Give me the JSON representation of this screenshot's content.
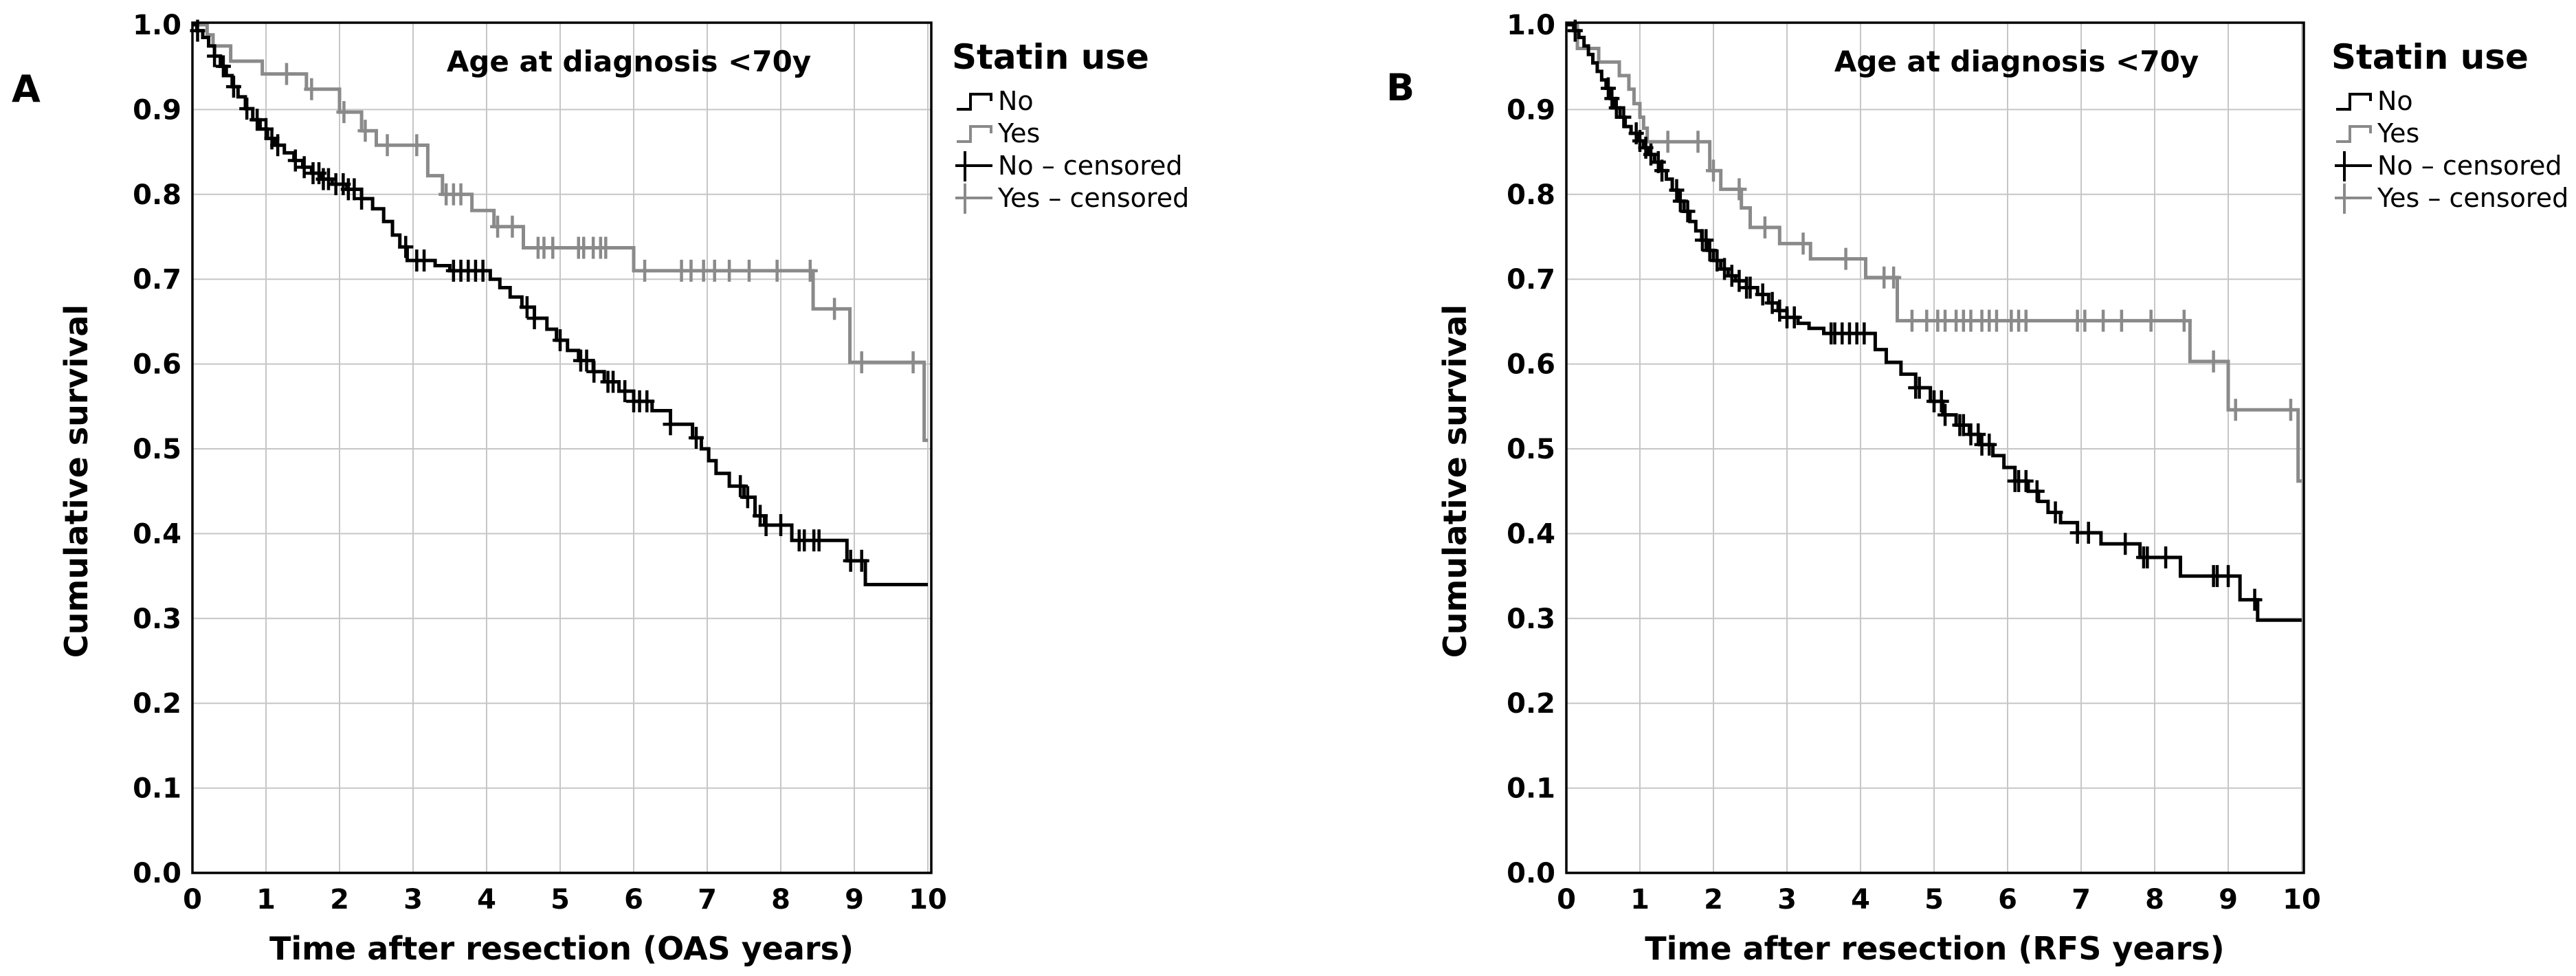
{
  "figure": {
    "background": "#ffffff",
    "grid_color": "#c6c6c6",
    "frame_color": "#000000"
  },
  "chart_data": [
    {
      "panel_label": "A",
      "type": "line",
      "subtype": "kaplan-meier-step",
      "title": "Age at diagnosis <70y",
      "xlabel": "Time after resection (OAS years)",
      "ylabel": "Cumulative survival",
      "legend_title": "Statin use",
      "legend_items": [
        "No",
        "Yes",
        "No – censored",
        "Yes – censored"
      ],
      "xlim": [
        0,
        10
      ],
      "ylim": [
        0.0,
        1.0
      ],
      "xticks": [
        0,
        1,
        2,
        3,
        4,
        5,
        6,
        7,
        8,
        9,
        10
      ],
      "yticks": [
        0.0,
        0.1,
        0.2,
        0.3,
        0.4,
        0.5,
        0.6,
        0.7,
        0.8,
        0.9,
        1.0
      ],
      "grid": true,
      "legend_position": "right",
      "series": [
        {
          "name": "No",
          "color": "#000000",
          "steps": [
            [
              0,
              1.0
            ],
            [
              0.06,
              0.993
            ],
            [
              0.14,
              0.985
            ],
            [
              0.22,
              0.975
            ],
            [
              0.3,
              0.963
            ],
            [
              0.38,
              0.951
            ],
            [
              0.46,
              0.94
            ],
            [
              0.54,
              0.927
            ],
            [
              0.62,
              0.915
            ],
            [
              0.72,
              0.901
            ],
            [
              0.82,
              0.888
            ],
            [
              0.92,
              0.877
            ],
            [
              1.02,
              0.866
            ],
            [
              1.12,
              0.858
            ],
            [
              1.25,
              0.849
            ],
            [
              1.38,
              0.84
            ],
            [
              1.5,
              0.832
            ],
            [
              1.62,
              0.825
            ],
            [
              1.75,
              0.818
            ],
            [
              1.9,
              0.812
            ],
            [
              2.1,
              0.806
            ],
            [
              2.3,
              0.795
            ],
            [
              2.45,
              0.783
            ],
            [
              2.6,
              0.768
            ],
            [
              2.72,
              0.752
            ],
            [
              2.82,
              0.738
            ],
            [
              2.92,
              0.722
            ],
            [
              3.3,
              0.716
            ],
            [
              3.5,
              0.71
            ],
            [
              4.05,
              0.7
            ],
            [
              4.18,
              0.69
            ],
            [
              4.32,
              0.679
            ],
            [
              4.48,
              0.667
            ],
            [
              4.65,
              0.654
            ],
            [
              4.82,
              0.641
            ],
            [
              4.95,
              0.628
            ],
            [
              5.1,
              0.616
            ],
            [
              5.25,
              0.604
            ],
            [
              5.45,
              0.591
            ],
            [
              5.6,
              0.579
            ],
            [
              5.8,
              0.568
            ],
            [
              6.0,
              0.556
            ],
            [
              6.25,
              0.545
            ],
            [
              6.5,
              0.529
            ],
            [
              6.8,
              0.513
            ],
            [
              6.92,
              0.5
            ],
            [
              7.02,
              0.486
            ],
            [
              7.12,
              0.471
            ],
            [
              7.3,
              0.456
            ],
            [
              7.5,
              0.443
            ],
            [
              7.65,
              0.421
            ],
            [
              7.78,
              0.41
            ],
            [
              8.15,
              0.392
            ],
            [
              8.9,
              0.368
            ],
            [
              9.15,
              0.34
            ]
          ],
          "censored_times": [
            0.07,
            0.3,
            0.42,
            0.56,
            0.74,
            0.88,
            1.0,
            1.08,
            1.16,
            1.4,
            1.52,
            1.64,
            1.72,
            1.78,
            1.85,
            1.95,
            2.05,
            2.12,
            2.2,
            2.3,
            2.9,
            3.05,
            3.15,
            3.55,
            3.65,
            3.75,
            3.85,
            3.95,
            4.55,
            4.65,
            5.0,
            5.28,
            5.36,
            5.46,
            5.65,
            5.72,
            5.88,
            6.0,
            6.08,
            6.18,
            6.5,
            6.85,
            7.45,
            7.55,
            7.72,
            7.8,
            8.0,
            8.25,
            8.32,
            8.45,
            8.52,
            8.95,
            9.1
          ]
        },
        {
          "name": "Yes",
          "color": "#8a8a8a",
          "steps": [
            [
              0,
              1.0
            ],
            [
              0.2,
              0.988
            ],
            [
              0.28,
              0.975
            ],
            [
              0.52,
              0.957
            ],
            [
              0.95,
              0.942
            ],
            [
              1.55,
              0.924
            ],
            [
              2.0,
              0.897
            ],
            [
              2.3,
              0.875
            ],
            [
              2.5,
              0.858
            ],
            [
              3.2,
              0.822
            ],
            [
              3.4,
              0.8
            ],
            [
              3.8,
              0.781
            ],
            [
              4.1,
              0.762
            ],
            [
              4.5,
              0.737
            ],
            [
              6.0,
              0.71
            ],
            [
              8.44,
              0.665
            ],
            [
              8.94,
              0.602
            ],
            [
              9.95,
              0.51
            ]
          ],
          "censored_times": [
            1.28,
            1.62,
            2.06,
            2.35,
            2.65,
            3.05,
            3.45,
            3.55,
            3.65,
            4.15,
            4.35,
            4.7,
            4.78,
            4.9,
            5.25,
            5.32,
            5.45,
            5.55,
            5.62,
            6.15,
            6.65,
            6.78,
            6.95,
            7.1,
            7.3,
            7.57,
            7.95,
            8.4,
            8.73,
            9.1,
            9.8
          ]
        }
      ]
    },
    {
      "panel_label": "B",
      "type": "line",
      "subtype": "kaplan-meier-step",
      "title": "Age at diagnosis <70y",
      "xlabel": "Time after resection (RFS years)",
      "ylabel": "Cumulative survival",
      "legend_title": "Statin use",
      "legend_items": [
        "No",
        "Yes",
        "No – censored",
        "Yes – censored"
      ],
      "xlim": [
        0,
        10
      ],
      "ylim": [
        0.0,
        1.0
      ],
      "xticks": [
        0,
        1,
        2,
        3,
        4,
        5,
        6,
        7,
        8,
        9,
        10
      ],
      "yticks": [
        0.0,
        0.1,
        0.2,
        0.3,
        0.4,
        0.5,
        0.6,
        0.7,
        0.8,
        0.9,
        1.0
      ],
      "grid": true,
      "legend_position": "right",
      "series": [
        {
          "name": "No",
          "color": "#000000",
          "steps": [
            [
              0,
              1.0
            ],
            [
              0.1,
              0.993
            ],
            [
              0.17,
              0.985
            ],
            [
              0.24,
              0.975
            ],
            [
              0.3,
              0.965
            ],
            [
              0.36,
              0.955
            ],
            [
              0.42,
              0.945
            ],
            [
              0.48,
              0.935
            ],
            [
              0.54,
              0.925
            ],
            [
              0.6,
              0.913
            ],
            [
              0.66,
              0.902
            ],
            [
              0.73,
              0.891
            ],
            [
              0.8,
              0.88
            ],
            [
              0.88,
              0.872
            ],
            [
              0.97,
              0.863
            ],
            [
              1.05,
              0.855
            ],
            [
              1.12,
              0.847
            ],
            [
              1.2,
              0.838
            ],
            [
              1.28,
              0.828
            ],
            [
              1.36,
              0.818
            ],
            [
              1.44,
              0.805
            ],
            [
              1.52,
              0.792
            ],
            [
              1.6,
              0.78
            ],
            [
              1.68,
              0.768
            ],
            [
              1.76,
              0.757
            ],
            [
              1.84,
              0.746
            ],
            [
              1.92,
              0.734
            ],
            [
              2.0,
              0.722
            ],
            [
              2.1,
              0.712
            ],
            [
              2.2,
              0.704
            ],
            [
              2.3,
              0.698
            ],
            [
              2.45,
              0.69
            ],
            [
              2.6,
              0.682
            ],
            [
              2.75,
              0.672
            ],
            [
              2.88,
              0.663
            ],
            [
              3.0,
              0.655
            ],
            [
              3.15,
              0.648
            ],
            [
              3.3,
              0.642
            ],
            [
              3.5,
              0.636
            ],
            [
              4.2,
              0.617
            ],
            [
              4.35,
              0.602
            ],
            [
              4.55,
              0.588
            ],
            [
              4.75,
              0.572
            ],
            [
              4.95,
              0.556
            ],
            [
              5.12,
              0.54
            ],
            [
              5.3,
              0.528
            ],
            [
              5.48,
              0.517
            ],
            [
              5.62,
              0.505
            ],
            [
              5.8,
              0.492
            ],
            [
              5.95,
              0.478
            ],
            [
              6.1,
              0.462
            ],
            [
              6.28,
              0.45
            ],
            [
              6.42,
              0.438
            ],
            [
              6.55,
              0.425
            ],
            [
              6.72,
              0.413
            ],
            [
              6.95,
              0.401
            ],
            [
              7.27,
              0.388
            ],
            [
              7.8,
              0.372
            ],
            [
              8.35,
              0.35
            ],
            [
              9.16,
              0.322
            ],
            [
              9.4,
              0.298
            ]
          ],
          "censored_times": [
            0.12,
            0.57,
            0.62,
            0.68,
            0.78,
            0.95,
            1.0,
            1.08,
            1.15,
            1.25,
            1.3,
            1.5,
            1.55,
            1.65,
            1.85,
            1.9,
            1.95,
            2.05,
            2.15,
            2.25,
            2.35,
            2.45,
            2.5,
            2.67,
            2.8,
            2.9,
            3.0,
            3.1,
            3.6,
            3.65,
            3.75,
            3.85,
            3.95,
            4.05,
            4.75,
            4.8,
            5.0,
            5.1,
            5.15,
            5.35,
            5.4,
            5.5,
            5.6,
            5.65,
            5.75,
            6.1,
            6.15,
            6.25,
            6.4,
            6.65,
            6.95,
            7.1,
            7.6,
            7.85,
            7.9,
            8.15,
            8.8,
            8.85,
            9.0,
            9.36
          ]
        },
        {
          "name": "Yes",
          "color": "#8a8a8a",
          "steps": [
            [
              0,
              1.0
            ],
            [
              0.15,
              0.972
            ],
            [
              0.44,
              0.956
            ],
            [
              0.72,
              0.94
            ],
            [
              0.85,
              0.924
            ],
            [
              0.92,
              0.907
            ],
            [
              1.0,
              0.891
            ],
            [
              1.05,
              0.878
            ],
            [
              1.1,
              0.862
            ],
            [
              1.95,
              0.828
            ],
            [
              2.1,
              0.806
            ],
            [
              2.38,
              0.784
            ],
            [
              2.5,
              0.761
            ],
            [
              2.9,
              0.742
            ],
            [
              3.32,
              0.724
            ],
            [
              4.07,
              0.702
            ],
            [
              4.5,
              0.651
            ],
            [
              8.48,
              0.603
            ],
            [
              9.0,
              0.546
            ],
            [
              9.95,
              0.462
            ]
          ],
          "censored_times": [
            1.38,
            1.79,
            2.0,
            2.35,
            2.7,
            3.22,
            3.8,
            4.32,
            4.45,
            4.7,
            4.9,
            5.05,
            5.15,
            5.3,
            5.4,
            5.5,
            5.65,
            5.75,
            5.85,
            6.05,
            6.15,
            6.25,
            6.95,
            7.05,
            7.3,
            7.55,
            7.95,
            8.4,
            8.8,
            9.1,
            9.85
          ]
        }
      ]
    }
  ]
}
